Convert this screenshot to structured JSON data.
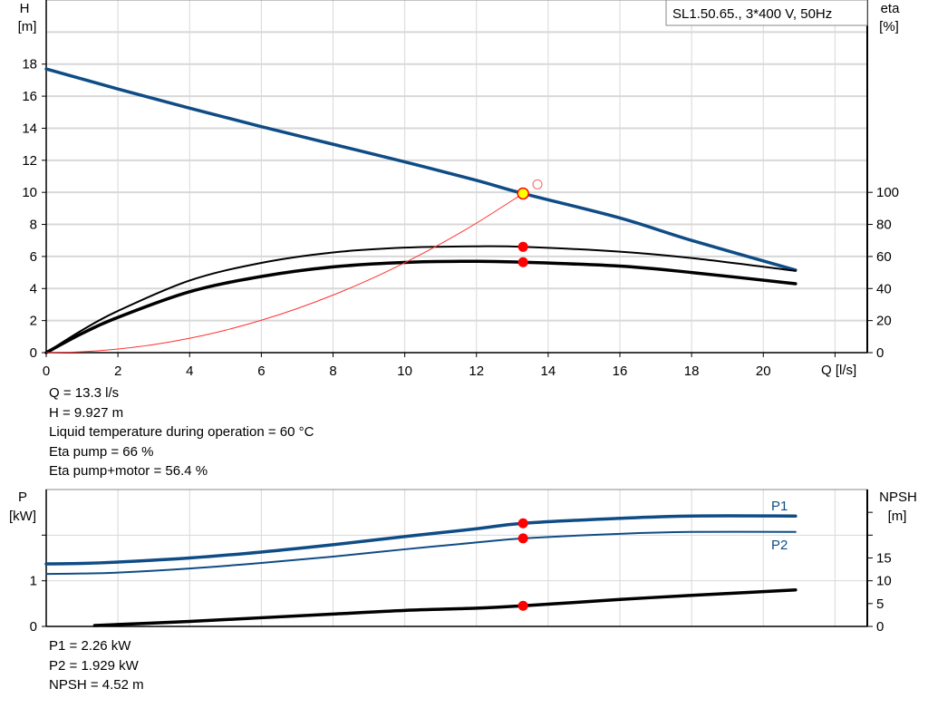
{
  "chart_data": [
    {
      "type": "line",
      "title": "SL1.50.65., 3*400 V, 50Hz",
      "xlabel": "Q [l/s]",
      "ylabel_left": [
        "H",
        "[m]"
      ],
      "ylabel_right": [
        "eta",
        "[%]"
      ],
      "xlim": [
        0,
        22.9
      ],
      "ylim_left": [
        0,
        22
      ],
      "ylim_right": [
        0,
        220
      ],
      "x_ticks": [
        0,
        2,
        4,
        6,
        8,
        10,
        12,
        14,
        16,
        18,
        20
      ],
      "y_ticks_left": [
        0,
        2,
        4,
        6,
        8,
        10,
        12,
        14,
        16,
        18
      ],
      "y_ticks_right": [
        0,
        20,
        40,
        60,
        80,
        100
      ],
      "grid": true,
      "series": [
        {
          "axis": "left",
          "color": "#0f4c85",
          "width": 3.5,
          "x": [
            0,
            2,
            4,
            6,
            8,
            10,
            12,
            13.3,
            16,
            18,
            20.9
          ],
          "y": [
            17.7,
            16.45,
            15.25,
            14.1,
            13.0,
            11.9,
            10.75,
            9.927,
            8.4,
            7.0,
            5.15
          ]
        },
        {
          "axis": "right",
          "color": "#000000",
          "width": 2,
          "x": [
            0,
            1,
            2,
            4,
            6,
            8,
            10,
            12,
            13.3,
            16,
            18,
            20.9
          ],
          "y": [
            0,
            14,
            26,
            45,
            56,
            62.5,
            65.5,
            66.3,
            66,
            63,
            59,
            51
          ]
        },
        {
          "axis": "right",
          "color": "#000000",
          "width": 3.5,
          "x": [
            0,
            1,
            2,
            4,
            6,
            8,
            10,
            12,
            13.3,
            16,
            18,
            20.9
          ],
          "y": [
            0,
            12,
            22,
            38,
            47.5,
            53.5,
            56.3,
            57,
            56.4,
            54,
            50,
            43
          ]
        },
        {
          "axis": "left",
          "color": "#ff3030",
          "width": 1,
          "x": [
            0,
            1,
            2,
            3,
            4,
            5,
            6,
            7,
            8,
            9,
            10,
            11,
            12,
            13.3
          ],
          "y": [
            0,
            0.056,
            0.224,
            0.505,
            0.898,
            1.4,
            2.02,
            2.75,
            3.59,
            4.54,
            5.61,
            6.79,
            8.08,
            9.927
          ]
        }
      ],
      "operating_points": [
        {
          "axis": "left",
          "x": 13.3,
          "y": 9.927,
          "style": "yellow"
        },
        {
          "axis": "right",
          "x": 13.3,
          "y": 66,
          "style": "red"
        },
        {
          "axis": "right",
          "x": 13.3,
          "y": 56.4,
          "style": "red"
        },
        {
          "axis": "left",
          "x": 13.7,
          "y": 10.5,
          "style": "open"
        }
      ],
      "annotations": [
        "Q = 13.3 l/s",
        "H = 9.927 m",
        "Liquid temperature during operation = 60 °C",
        "Eta pump = 66 %",
        "Eta pump+motor = 56.4 %"
      ]
    },
    {
      "type": "line",
      "ylabel_left": [
        "P",
        "[kW]"
      ],
      "ylabel_right": [
        "NPSH",
        "[m]"
      ],
      "xlim": [
        0,
        22.9
      ],
      "ylim_left": [
        0,
        3
      ],
      "ylim_right": [
        0,
        30
      ],
      "y_ticks_left": [
        0,
        1
      ],
      "y_ticks_right": [
        0,
        5,
        10,
        15
      ],
      "grid": true,
      "series": [
        {
          "name": "P1",
          "axis": "left",
          "color": "#0f4c85",
          "width": 3.5,
          "x": [
            0,
            1,
            2,
            4,
            6,
            8,
            10,
            12,
            13.3,
            16,
            18,
            20.9
          ],
          "y": [
            1.37,
            1.38,
            1.41,
            1.5,
            1.63,
            1.79,
            1.97,
            2.14,
            2.26,
            2.37,
            2.42,
            2.42
          ]
        },
        {
          "name": "P2",
          "axis": "left",
          "color": "#0f4c85",
          "width": 2,
          "x": [
            0,
            1,
            2,
            4,
            6,
            8,
            10,
            12,
            13.3,
            16,
            18,
            20.9
          ],
          "y": [
            1.15,
            1.16,
            1.18,
            1.27,
            1.39,
            1.53,
            1.69,
            1.84,
            1.929,
            2.03,
            2.07,
            2.07
          ]
        },
        {
          "axis": "right",
          "color": "#000000",
          "width": 3.5,
          "x": [
            1.35,
            4,
            6,
            8,
            10,
            12,
            13.3,
            16,
            18,
            20.9
          ],
          "y": [
            0.2,
            1.1,
            1.9,
            2.7,
            3.5,
            4.0,
            4.52,
            5.9,
            6.8,
            8.0
          ]
        }
      ],
      "operating_points": [
        {
          "axis": "left",
          "x": 13.3,
          "y": 2.26,
          "style": "red"
        },
        {
          "axis": "left",
          "x": 13.3,
          "y": 1.929,
          "style": "red"
        },
        {
          "axis": "right",
          "x": 13.3,
          "y": 4.52,
          "style": "red"
        }
      ],
      "annotations": [
        "P1 = 2.26 kW",
        "P2 = 1.929 kW",
        "NPSH = 4.52 m"
      ]
    }
  ]
}
